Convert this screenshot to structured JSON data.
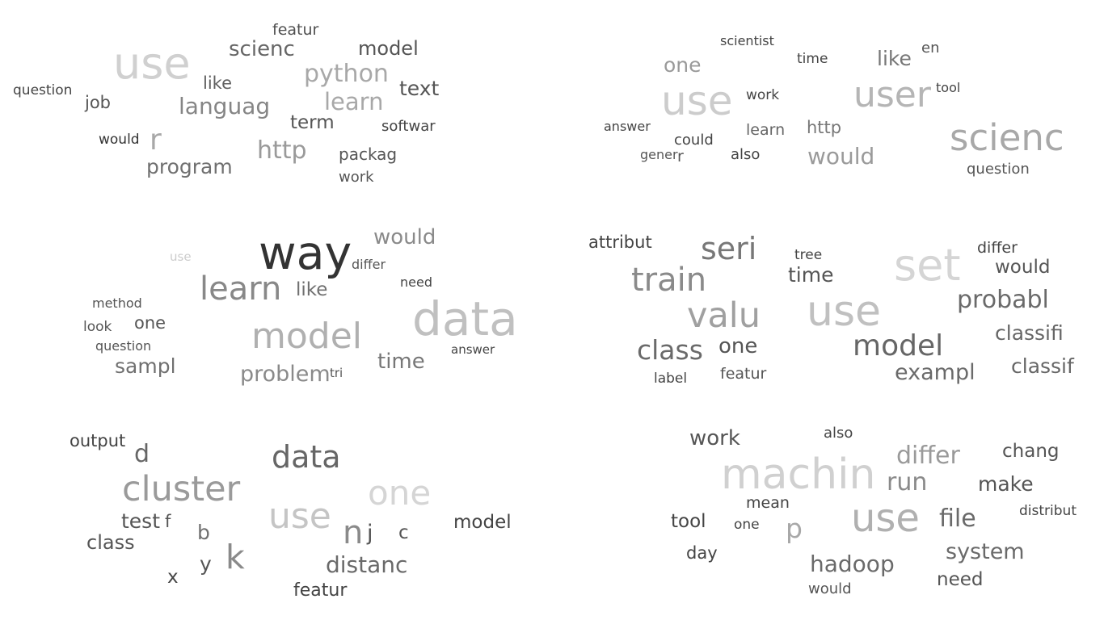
{
  "clouds": [
    {
      "words": [
        {
          "text": "featur",
          "color": "#505050"
        },
        {
          "text": "use",
          "color": "#d0d0d0"
        },
        {
          "text": "scienc",
          "color": "#666666"
        },
        {
          "text": "model",
          "color": "#555555"
        },
        {
          "text": "python",
          "color": "#a8a8a8"
        },
        {
          "text": "question",
          "color": "#444444"
        },
        {
          "text": "like",
          "color": "#606060"
        },
        {
          "text": "job",
          "color": "#555555"
        },
        {
          "text": "languag",
          "color": "#858585"
        },
        {
          "text": "learn",
          "color": "#a8a8a8"
        },
        {
          "text": "text",
          "color": "#555555"
        },
        {
          "text": "term",
          "color": "#555555"
        },
        {
          "text": "would",
          "color": "#333333"
        },
        {
          "text": "r",
          "color": "#a8a8a8"
        },
        {
          "text": "softwar",
          "color": "#444444"
        },
        {
          "text": "http",
          "color": "#9a9a9a"
        },
        {
          "text": "packag",
          "color": "#555555"
        },
        {
          "text": "program",
          "color": "#707070"
        },
        {
          "text": "work",
          "color": "#555555"
        }
      ]
    },
    {
      "words": [
        {
          "text": "scientist",
          "color": "#444444"
        },
        {
          "text": "en",
          "color": "#555555"
        },
        {
          "text": "one",
          "color": "#9a9a9a"
        },
        {
          "text": "time",
          "color": "#444444"
        },
        {
          "text": "like",
          "color": "#777777"
        },
        {
          "text": "tool",
          "color": "#444444"
        },
        {
          "text": "use",
          "color": "#cccccc"
        },
        {
          "text": "work",
          "color": "#444444"
        },
        {
          "text": "user",
          "color": "#b5b5b5"
        },
        {
          "text": "answer",
          "color": "#444444"
        },
        {
          "text": "learn",
          "color": "#666666"
        },
        {
          "text": "http",
          "color": "#777777"
        },
        {
          "text": "could",
          "color": "#444444"
        },
        {
          "text": "scienc",
          "color": "#a8a8a8"
        },
        {
          "text": "gener",
          "color": "#555555"
        },
        {
          "text": "r",
          "color": "#555555"
        },
        {
          "text": "also",
          "color": "#444444"
        },
        {
          "text": "would",
          "color": "#9a9a9a"
        },
        {
          "text": "question",
          "color": "#555555"
        }
      ]
    },
    {
      "words": [
        {
          "text": "would",
          "color": "#8a8a8a"
        },
        {
          "text": "use",
          "color": "#cccccc"
        },
        {
          "text": "way",
          "color": "#333333"
        },
        {
          "text": "differ",
          "color": "#555555"
        },
        {
          "text": "learn",
          "color": "#888888"
        },
        {
          "text": "like",
          "color": "#707070"
        },
        {
          "text": "need",
          "color": "#444444"
        },
        {
          "text": "method",
          "color": "#555555"
        },
        {
          "text": "data",
          "color": "#c0c0c0"
        },
        {
          "text": "look",
          "color": "#555555"
        },
        {
          "text": "one",
          "color": "#555555"
        },
        {
          "text": "model",
          "color": "#b0b0b0"
        },
        {
          "text": "question",
          "color": "#555555"
        },
        {
          "text": "time",
          "color": "#777777"
        },
        {
          "text": "answer",
          "color": "#444444"
        },
        {
          "text": "sampl",
          "color": "#707070"
        },
        {
          "text": "problem",
          "color": "#8a8a8a"
        },
        {
          "text": "tri",
          "color": "#555555"
        }
      ]
    },
    {
      "words": [
        {
          "text": "attribut",
          "color": "#444444"
        },
        {
          "text": "seri",
          "color": "#777777"
        },
        {
          "text": "differ",
          "color": "#444444"
        },
        {
          "text": "tree",
          "color": "#444444"
        },
        {
          "text": "set",
          "color": "#d5d5d5"
        },
        {
          "text": "would",
          "color": "#555555"
        },
        {
          "text": "train",
          "color": "#8a8a8a"
        },
        {
          "text": "time",
          "color": "#555555"
        },
        {
          "text": "use",
          "color": "#c0c0c0"
        },
        {
          "text": "probabl",
          "color": "#6a6a6a"
        },
        {
          "text": "valu",
          "color": "#a0a0a0"
        },
        {
          "text": "classifi",
          "color": "#666666"
        },
        {
          "text": "class",
          "color": "#6a6a6a"
        },
        {
          "text": "one",
          "color": "#555555"
        },
        {
          "text": "model",
          "color": "#666666"
        },
        {
          "text": "classif",
          "color": "#666666"
        },
        {
          "text": "exampl",
          "color": "#6a6a6a"
        },
        {
          "text": "label",
          "color": "#444444"
        },
        {
          "text": "featur",
          "color": "#555555"
        }
      ]
    },
    {
      "words": [
        {
          "text": "output",
          "color": "#444444"
        },
        {
          "text": "d",
          "color": "#666666"
        },
        {
          "text": "data",
          "color": "#666666"
        },
        {
          "text": "cluster",
          "color": "#9a9a9a"
        },
        {
          "text": "one",
          "color": "#d5d5d5"
        },
        {
          "text": "test",
          "color": "#555555"
        },
        {
          "text": "f",
          "color": "#555555"
        },
        {
          "text": "use",
          "color": "#c5c5c5"
        },
        {
          "text": "model",
          "color": "#444444"
        },
        {
          "text": "b",
          "color": "#707070"
        },
        {
          "text": "n",
          "color": "#8a8a8a"
        },
        {
          "text": "j",
          "color": "#555555"
        },
        {
          "text": "c",
          "color": "#555555"
        },
        {
          "text": "class",
          "color": "#555555"
        },
        {
          "text": "k",
          "color": "#8a8a8a"
        },
        {
          "text": "y",
          "color": "#555555"
        },
        {
          "text": "x",
          "color": "#444444"
        },
        {
          "text": "distanc",
          "color": "#6a6a6a"
        },
        {
          "text": "featur",
          "color": "#444444"
        }
      ]
    },
    {
      "words": [
        {
          "text": "work",
          "color": "#555555"
        },
        {
          "text": "also",
          "color": "#444444"
        },
        {
          "text": "chang",
          "color": "#555555"
        },
        {
          "text": "differ",
          "color": "#9a9a9a"
        },
        {
          "text": "machin",
          "color": "#d0d0d0"
        },
        {
          "text": "run",
          "color": "#8a8a8a"
        },
        {
          "text": "make",
          "color": "#555555"
        },
        {
          "text": "mean",
          "color": "#444444"
        },
        {
          "text": "distribut",
          "color": "#444444"
        },
        {
          "text": "tool",
          "color": "#444444"
        },
        {
          "text": "one",
          "color": "#444444"
        },
        {
          "text": "p",
          "color": "#a8a8a8"
        },
        {
          "text": "use",
          "color": "#b0b0b0"
        },
        {
          "text": "file",
          "color": "#6a6a6a"
        },
        {
          "text": "day",
          "color": "#444444"
        },
        {
          "text": "system",
          "color": "#6a6a6a"
        },
        {
          "text": "hadoop",
          "color": "#6a6a6a"
        },
        {
          "text": "need",
          "color": "#555555"
        },
        {
          "text": "would",
          "color": "#555555"
        }
      ]
    }
  ]
}
